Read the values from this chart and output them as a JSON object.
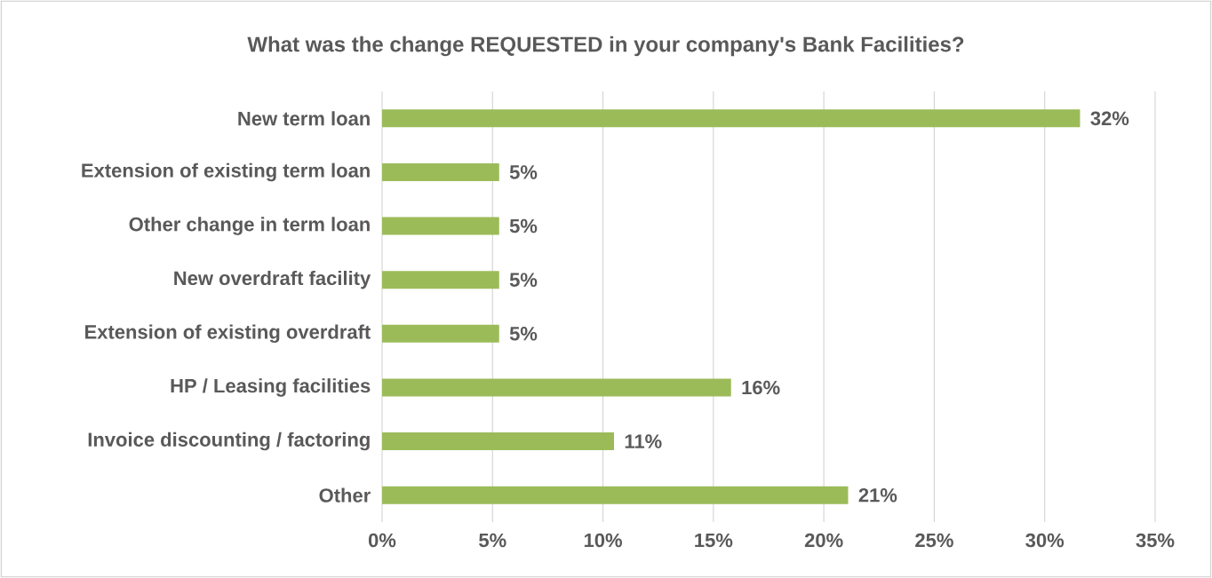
{
  "chart_data": {
    "type": "bar",
    "orientation": "horizontal",
    "title": "What was the change REQUESTED in your company's Bank Facilities?",
    "categories": [
      "New term loan",
      "Extension of existing term loan",
      "Other change in term loan",
      "New overdraft facility",
      "Extension of existing overdraft",
      "HP / Leasing facilities",
      "Invoice discounting / factoring",
      "Other"
    ],
    "values": [
      31.6,
      5.3,
      5.3,
      5.3,
      5.3,
      15.8,
      10.5,
      21.1
    ],
    "value_labels": [
      "32%",
      "5%",
      "5%",
      "5%",
      "5%",
      "16%",
      "11%",
      "21%"
    ],
    "color": "#9bbb59",
    "xlim": [
      0,
      35
    ],
    "xticks": [
      {
        "value": 0,
        "label": "0%"
      },
      {
        "value": 5,
        "label": "5%"
      },
      {
        "value": 10,
        "label": "10%"
      },
      {
        "value": 15,
        "label": "15%"
      },
      {
        "value": 20,
        "label": "20%"
      },
      {
        "value": 25,
        "label": "25%"
      },
      {
        "value": 30,
        "label": "30%"
      },
      {
        "value": 35,
        "label": "35%"
      }
    ],
    "grid": "x"
  }
}
